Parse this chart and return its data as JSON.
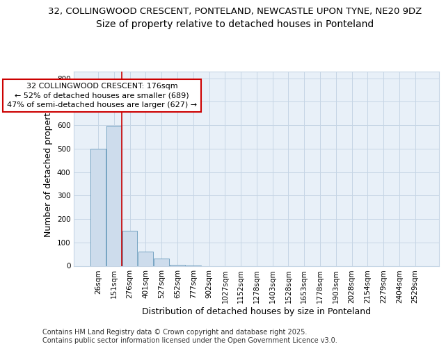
{
  "title_line1": "32, COLLINGWOOD CRESCENT, PONTELAND, NEWCASTLE UPON TYNE, NE20 9DZ",
  "title_line2": "Size of property relative to detached houses in Ponteland",
  "xlabel": "Distribution of detached houses by size in Ponteland",
  "ylabel": "Number of detached properties",
  "categories": [
    "26sqm",
    "151sqm",
    "276sqm",
    "401sqm",
    "527sqm",
    "652sqm",
    "777sqm",
    "902sqm",
    "1027sqm",
    "1152sqm",
    "1278sqm",
    "1403sqm",
    "1528sqm",
    "1653sqm",
    "1778sqm",
    "1903sqm",
    "2028sqm",
    "2154sqm",
    "2279sqm",
    "2404sqm",
    "2529sqm"
  ],
  "values": [
    500,
    597,
    150,
    62,
    30,
    5,
    1,
    0,
    0,
    0,
    0,
    0,
    0,
    0,
    0,
    0,
    0,
    0,
    0,
    0,
    0
  ],
  "bar_color": "#cddcec",
  "bar_edge_color": "#6699bb",
  "grid_color": "#c5d5e5",
  "background_color": "#e8f0f8",
  "vline_x": 1.5,
  "vline_color": "#cc0000",
  "annotation_line1": "32 COLLINGWOOD CRESCENT: 176sqm",
  "annotation_line2": "← 52% of detached houses are smaller (689)",
  "annotation_line3": "47% of semi-detached houses are larger (627) →",
  "annotation_box_color": "#cc0000",
  "ylim": [
    0,
    830
  ],
  "yticks": [
    0,
    100,
    200,
    300,
    400,
    500,
    600,
    700,
    800
  ],
  "footer_text": "Contains HM Land Registry data © Crown copyright and database right 2025.\nContains public sector information licensed under the Open Government Licence v3.0.",
  "title1_fontsize": 9.5,
  "title2_fontsize": 10,
  "axis_label_fontsize": 9,
  "tick_fontsize": 7.5,
  "annotation_fontsize": 8,
  "footer_fontsize": 7
}
